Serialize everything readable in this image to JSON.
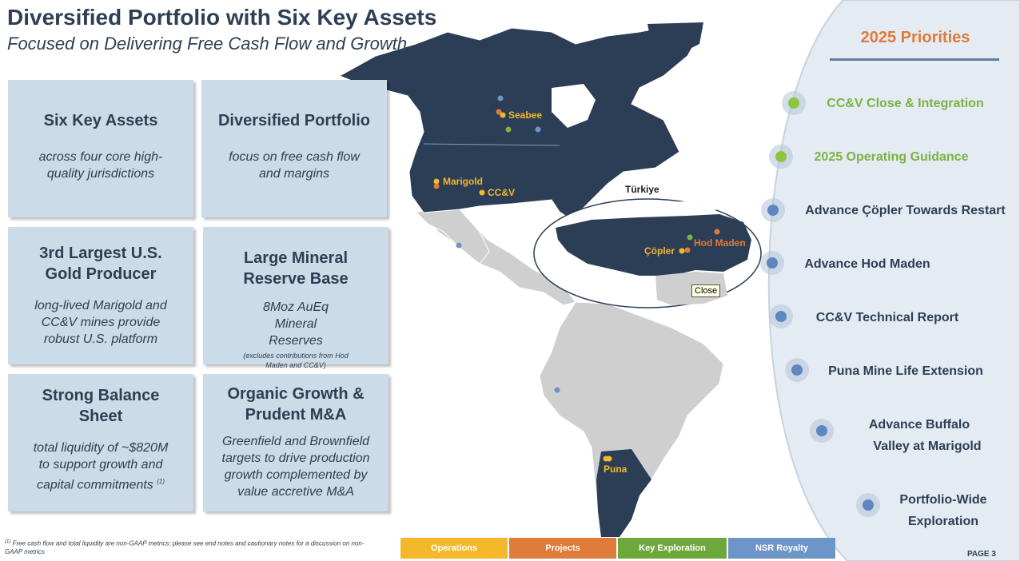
{
  "header": {
    "title": "Diversified Portfolio with Six Key Assets",
    "subtitle": "Focused on Delivering Free Cash Flow and Growth"
  },
  "cards": [
    {
      "heading": "Six Key Assets",
      "body": "across four core high-quality jurisdictions",
      "note": ""
    },
    {
      "heading": "Diversified Portfolio",
      "body": "focus on free cash flow and margins",
      "note": ""
    },
    {
      "heading": "3rd Largest U.S. Gold Producer",
      "body": "long-lived Marigold and CC&V mines provide robust U.S. platform",
      "note": ""
    },
    {
      "heading": "Large Mineral Reserve Base",
      "body": "8Moz AuEq Mineral Reserves",
      "note": "(excludes contributions from Hod Maden and CC&V)"
    },
    {
      "heading": "Strong Balance Sheet",
      "body": "total liquidity of ~$820M to support growth and capital commitments",
      "sup": "(1)"
    },
    {
      "heading": "Organic Growth & Prudent M&A",
      "body": "Greenfield and Brownfield targets to drive production growth complemented by value accretive M&A",
      "note": ""
    }
  ],
  "map": {
    "labels": {
      "seabee": "Seabee",
      "marigold": "Marigold",
      "ccv": "CC&V",
      "turkiye": "Türkiye",
      "copler": "Çöpler",
      "hod_maden": "Hod Maden",
      "puna": "Puna"
    },
    "tooltip": "Close",
    "colors": {
      "land_dark": "#2b3e55",
      "land_light": "#cfcfcf",
      "operations": "#f4b82a",
      "projects": "#e07b39",
      "exploration": "#7cb342",
      "royalty": "#6e95c8"
    }
  },
  "legend": [
    {
      "label": "Operations",
      "color": "#f4b82a"
    },
    {
      "label": "Projects",
      "color": "#e07b39"
    },
    {
      "label": "Key Exploration",
      "color": "#6fa83a"
    },
    {
      "label": "NSR Royalty",
      "color": "#6e95c8"
    }
  ],
  "priorities": {
    "title": "2025 Priorities",
    "items": [
      {
        "line1": "CC&V Close & Integration",
        "line2": "",
        "status": "done"
      },
      {
        "line1": "2025 Operating Guidance",
        "line2": "",
        "status": "done"
      },
      {
        "line1": "Advance Çöpler Towards Restart",
        "line2": "",
        "status": "open"
      },
      {
        "line1": "Advance Hod Maden",
        "line2": "",
        "status": "open"
      },
      {
        "line1": "CC&V Technical Report",
        "line2": "",
        "status": "open"
      },
      {
        "line1": "Puna Mine Life Extension",
        "line2": "",
        "status": "open"
      },
      {
        "line1": "Advance Buffalo",
        "line2": "Valley at Marigold",
        "status": "open"
      },
      {
        "line1": "Portfolio-Wide",
        "line2": "Exploration",
        "status": "open"
      }
    ]
  },
  "footer": {
    "footnote_mark": "(1)",
    "footnote": "Free cash flow and total liquidity are non-GAAP metrics; please see end notes and cautionary notes for a discussion on non-GAAP metrics",
    "page": "PAGE 3"
  }
}
